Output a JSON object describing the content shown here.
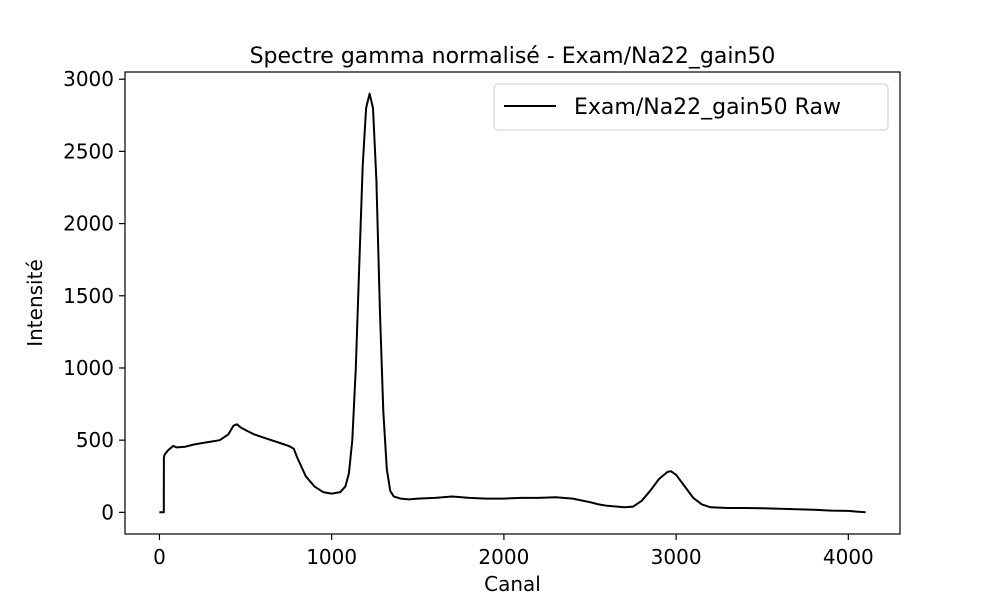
{
  "chart_data": {
    "type": "line",
    "title": "Spectre gamma normalisé - Exam/Na22_gain50",
    "xlabel": "Canal",
    "ylabel": "Intensité",
    "xlim": [
      -200,
      4300
    ],
    "ylim": [
      -150,
      3050
    ],
    "xticks": [
      0,
      1000,
      2000,
      3000,
      4000
    ],
    "xtick_labels": [
      "0",
      "1000",
      "2000",
      "3000",
      "4000"
    ],
    "yticks": [
      0,
      500,
      1000,
      1500,
      2000,
      2500,
      3000
    ],
    "ytick_labels": [
      "0",
      "500",
      "1000",
      "1500",
      "2000",
      "2500",
      "3000"
    ],
    "grid": false,
    "legend": {
      "position": "top-right"
    },
    "series": [
      {
        "name": "Exam/Na22_gain50 Raw",
        "color": "#000000",
        "x": [
          0,
          25,
          26,
          30,
          50,
          80,
          100,
          150,
          200,
          250,
          300,
          350,
          400,
          430,
          450,
          470,
          500,
          550,
          600,
          650,
          700,
          750,
          780,
          800,
          850,
          900,
          950,
          1000,
          1050,
          1080,
          1100,
          1120,
          1140,
          1160,
          1180,
          1200,
          1220,
          1240,
          1260,
          1280,
          1300,
          1320,
          1340,
          1360,
          1400,
          1450,
          1500,
          1600,
          1700,
          1800,
          1900,
          2000,
          2100,
          2200,
          2300,
          2400,
          2500,
          2550,
          2600,
          2700,
          2750,
          2800,
          2850,
          2900,
          2950,
          2970,
          3000,
          3050,
          3100,
          3150,
          3200,
          3300,
          3400,
          3500,
          3600,
          3700,
          3800,
          3900,
          4000,
          4050,
          4100
        ],
        "y": [
          0,
          0,
          380,
          400,
          430,
          460,
          450,
          455,
          470,
          480,
          490,
          500,
          540,
          600,
          610,
          590,
          570,
          540,
          520,
          500,
          480,
          460,
          440,
          380,
          250,
          180,
          140,
          130,
          140,
          180,
          270,
          500,
          1000,
          1700,
          2400,
          2800,
          2900,
          2800,
          2300,
          1400,
          700,
          300,
          150,
          110,
          95,
          90,
          95,
          100,
          110,
          100,
          95,
          95,
          100,
          100,
          105,
          95,
          70,
          55,
          45,
          35,
          40,
          80,
          150,
          230,
          280,
          285,
          260,
          180,
          100,
          55,
          35,
          30,
          30,
          28,
          25,
          22,
          18,
          12,
          10,
          5,
          0
        ]
      }
    ]
  }
}
